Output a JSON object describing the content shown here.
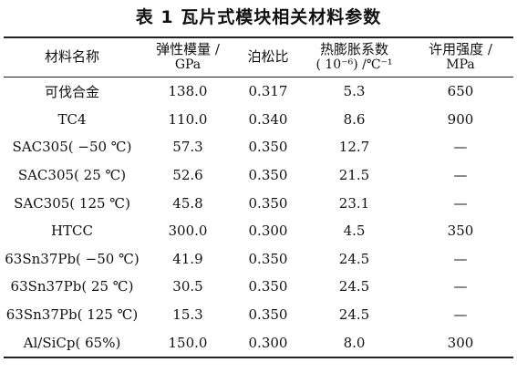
{
  "caption": "表 1 瓦片式模块相关材料参数",
  "table": {
    "headers": [
      {
        "line1": "材料名称",
        "line2": ""
      },
      {
        "line1": "弹性模量 /",
        "line2": "GPa"
      },
      {
        "line1": "泊松比",
        "line2": ""
      },
      {
        "line1": "热膨胀系数",
        "line2": "( 10⁻⁶) /℃⁻¹"
      },
      {
        "line1": "许用强度 /",
        "line2": "MPa"
      }
    ],
    "rows": [
      [
        "可伐合金",
        "138.0",
        "0.317",
        "5.3",
        "650"
      ],
      [
        "TC4",
        "110.0",
        "0.340",
        "8.6",
        "900"
      ],
      [
        "SAC305( −50 ℃)",
        "57.3",
        "0.350",
        "12.7",
        "—"
      ],
      [
        "SAC305( 25 ℃)",
        "52.6",
        "0.350",
        "21.5",
        "—"
      ],
      [
        "SAC305( 125 ℃)",
        "45.8",
        "0.350",
        "23.1",
        "—"
      ],
      [
        "HTCC",
        "300.0",
        "0.300",
        "4.5",
        "350"
      ],
      [
        "63Sn37Pb( −50 ℃)",
        "41.9",
        "0.350",
        "24.5",
        "—"
      ],
      [
        "63Sn37Pb( 25 ℃)",
        "30.5",
        "0.350",
        "24.5",
        "—"
      ],
      [
        "63Sn37Pb( 125 ℃)",
        "15.3",
        "0.350",
        "24.5",
        "—"
      ],
      [
        "Al/SiCp( 65%)",
        "150.0",
        "0.300",
        "8.0",
        "300"
      ]
    ]
  }
}
